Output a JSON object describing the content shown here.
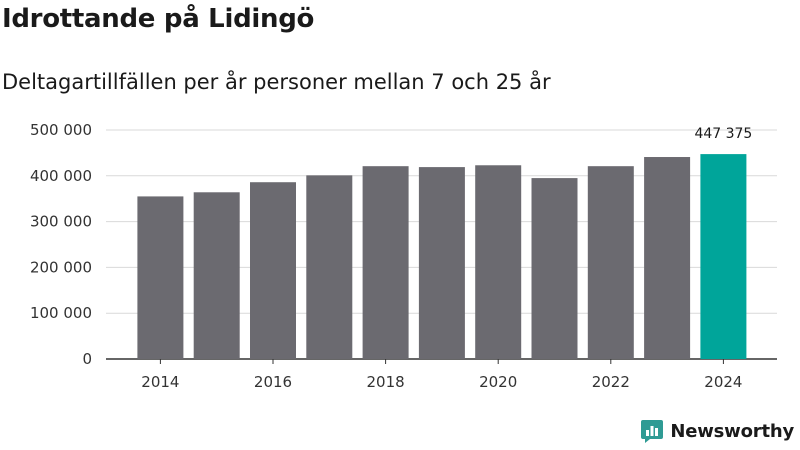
{
  "title": "Idrottande på Lidingö",
  "subtitle": "Deltagartillfällen per år personer mellan 7 och 25 år",
  "brand": {
    "name": "Newsworthy",
    "color": "#2f9b94"
  },
  "colors": {
    "bar": "#6b6a70",
    "highlight": "#00a59a",
    "grid": "#d9d9d9",
    "axis": "#333333"
  },
  "chart_data": {
    "type": "bar",
    "title": "Idrottande på Lidingö",
    "subtitle": "Deltagartillfällen per år personer mellan 7 och 25 år",
    "xlabel": "",
    "ylabel": "",
    "categories": [
      "2014",
      "2015",
      "2016",
      "2017",
      "2018",
      "2019",
      "2020",
      "2021",
      "2022",
      "2023",
      "2024"
    ],
    "values": [
      355000,
      364000,
      386000,
      401000,
      421000,
      419000,
      423000,
      395000,
      421000,
      441000,
      447375
    ],
    "x_tick_labels": [
      "2014",
      "2016",
      "2018",
      "2020",
      "2022",
      "2024"
    ],
    "y_ticks": [
      0,
      100000,
      200000,
      300000,
      400000,
      500000
    ],
    "y_tick_labels": [
      "0",
      "100 000",
      "200 000",
      "300 000",
      "400 000",
      "500 000"
    ],
    "ylim": [
      0,
      500000
    ],
    "grid": true,
    "highlight_index": 10,
    "data_labels": [
      {
        "index": 10,
        "text": "447 375"
      }
    ]
  }
}
